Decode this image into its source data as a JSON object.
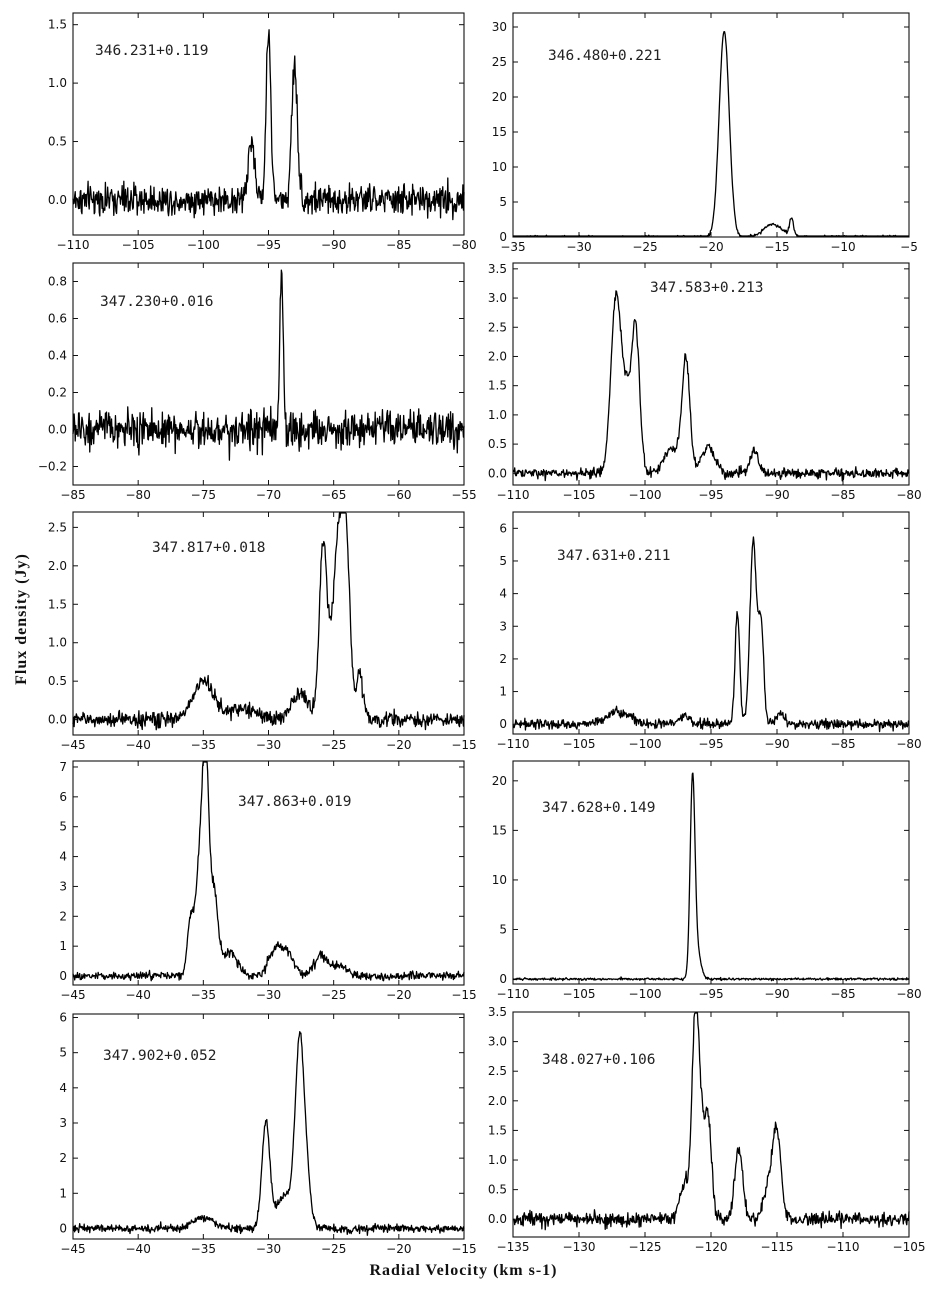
{
  "figure": {
    "ylabel": "Flux    density    (Jy)",
    "xlabel": "Radial    Velocity    (km s-1)",
    "line_color": "#000000"
  },
  "chart_data": [
    {
      "type": "line",
      "title": "346.231+0.119",
      "xlabel": "",
      "ylabel": "",
      "xlim": [
        -110,
        -80
      ],
      "ylim": [
        -0.3,
        1.6
      ],
      "xticks": [
        -110,
        -105,
        -100,
        -95,
        -90,
        -85,
        -80
      ],
      "yticks": [
        0.0,
        0.5,
        1.0,
        1.5
      ],
      "noise": 0.09,
      "series": [
        {
          "components": [
            [
              -96.3,
              0.5,
              0.25
            ],
            [
              -95.0,
              1.45,
              0.18
            ],
            [
              -93.0,
              1.15,
              0.22
            ]
          ]
        }
      ]
    },
    {
      "type": "line",
      "title": "346.480+0.221",
      "xlabel": "",
      "ylabel": "",
      "xlim": [
        -35,
        -5
      ],
      "ylim": [
        0,
        32
      ],
      "xticks": [
        -35,
        -30,
        -25,
        -20,
        -15,
        -10,
        -5
      ],
      "yticks": [
        0,
        5,
        10,
        15,
        20,
        25,
        30
      ],
      "noise": 0.15,
      "series": [
        {
          "components": [
            [
              -19.0,
              29.5,
              0.38
            ],
            [
              -15.3,
              1.8,
              0.7
            ],
            [
              -13.9,
              2.6,
              0.15
            ]
          ]
        }
      ]
    },
    {
      "type": "line",
      "title": "347.230+0.016",
      "xlabel": "",
      "ylabel": "",
      "xlim": [
        -85,
        -55
      ],
      "ylim": [
        -0.3,
        0.9
      ],
      "xticks": [
        -85,
        -80,
        -75,
        -70,
        -65,
        -60,
        -55
      ],
      "yticks": [
        -0.2,
        0.0,
        0.2,
        0.4,
        0.6,
        0.8
      ],
      "noise": 0.07,
      "series": [
        {
          "components": [
            [
              -69.0,
              0.83,
              0.13
            ]
          ]
        }
      ]
    },
    {
      "type": "line",
      "title": "347.583+0.213",
      "xlabel": "",
      "ylabel": "",
      "xlim": [
        -110,
        -80
      ],
      "ylim": [
        -0.2,
        3.6
      ],
      "xticks": [
        -110,
        -105,
        -100,
        -95,
        -90,
        -85,
        -80
      ],
      "yticks": [
        0.0,
        0.5,
        1.0,
        1.5,
        2.0,
        2.5,
        3.0,
        3.5
      ],
      "noise": 0.06,
      "series": [
        {
          "components": [
            [
              -102.2,
              3.0,
              0.38
            ],
            [
              -101.4,
              1.2,
              0.35
            ],
            [
              -100.7,
              2.4,
              0.3
            ],
            [
              -96.9,
              1.9,
              0.3
            ],
            [
              -98.0,
              0.4,
              0.6
            ],
            [
              -95.2,
              0.45,
              0.5
            ],
            [
              -91.7,
              0.4,
              0.3
            ]
          ]
        }
      ]
    },
    {
      "type": "line",
      "title": "347.817+0.018",
      "xlabel": "",
      "ylabel": "",
      "xlim": [
        -45,
        -15
      ],
      "ylim": [
        -0.2,
        2.7
      ],
      "xticks": [
        -45,
        -40,
        -35,
        -30,
        -25,
        -20,
        -15
      ],
      "yticks": [
        0.0,
        0.5,
        1.0,
        1.5,
        2.0,
        2.5
      ],
      "noise": 0.07,
      "series": [
        {
          "components": [
            [
              -35.0,
              0.5,
              0.8
            ],
            [
              -32.0,
              0.15,
              1.0
            ],
            [
              -27.6,
              0.35,
              0.6
            ],
            [
              -25.8,
              2.3,
              0.3
            ],
            [
              -24.6,
              2.4,
              0.45
            ],
            [
              -24.0,
              1.5,
              0.3
            ],
            [
              -23.0,
              0.6,
              0.25
            ]
          ]
        }
      ]
    },
    {
      "type": "line",
      "title": "347.631+0.211",
      "xlabel": "",
      "ylabel": "",
      "xlim": [
        -110,
        -80
      ],
      "ylim": [
        -0.3,
        6.5
      ],
      "xticks": [
        -110,
        -105,
        -100,
        -95,
        -90,
        -85,
        -80
      ],
      "yticks": [
        0,
        1,
        2,
        3,
        4,
        5,
        6
      ],
      "noise": 0.1,
      "series": [
        {
          "components": [
            [
              -102.0,
              0.4,
              0.9
            ],
            [
              -97.0,
              0.25,
              0.4
            ],
            [
              -93.0,
              3.4,
              0.18
            ],
            [
              -91.8,
              5.6,
              0.25
            ],
            [
              -91.2,
              3.0,
              0.2
            ],
            [
              -89.8,
              0.3,
              0.3
            ]
          ]
        }
      ]
    },
    {
      "type": "line",
      "title": "347.863+0.019",
      "xlabel": "",
      "ylabel": "",
      "xlim": [
        -45,
        -15
      ],
      "ylim": [
        -0.3,
        7.2
      ],
      "xticks": [
        -45,
        -40,
        -35,
        -30,
        -25,
        -20,
        -15
      ],
      "yticks": [
        0,
        1,
        2,
        3,
        4,
        5,
        6,
        7
      ],
      "noise": 0.1,
      "series": [
        {
          "components": [
            [
              -36.0,
              1.7,
              0.25
            ],
            [
              -35.2,
              4.3,
              0.35
            ],
            [
              -34.8,
              5.6,
              0.22
            ],
            [
              -34.2,
              2.8,
              0.3
            ],
            [
              -33.0,
              0.8,
              0.6
            ],
            [
              -29.5,
              0.9,
              0.5
            ],
            [
              -28.5,
              0.7,
              0.5
            ],
            [
              -26.0,
              0.7,
              0.5
            ],
            [
              -24.5,
              0.35,
              0.5
            ]
          ]
        }
      ]
    },
    {
      "type": "line",
      "title": "347.628+0.149",
      "xlabel": "",
      "ylabel": "",
      "xlim": [
        -110,
        -80
      ],
      "ylim": [
        -0.5,
        22
      ],
      "xticks": [
        -110,
        -105,
        -100,
        -95,
        -90,
        -85,
        -80
      ],
      "yticks": [
        0,
        5,
        10,
        15,
        20
      ],
      "noise": 0.08,
      "series": [
        {
          "components": [
            [
              -96.4,
              19.0,
              0.18
            ],
            [
              -96.1,
              3.0,
              0.3
            ]
          ]
        }
      ]
    },
    {
      "type": "line",
      "title": "347.902+0.052",
      "xlabel": "",
      "ylabel": "",
      "xlim": [
        -45,
        -15
      ],
      "ylim": [
        -0.3,
        6.1
      ],
      "xticks": [
        -45,
        -40,
        -35,
        -30,
        -25,
        -20,
        -15
      ],
      "yticks": [
        0,
        1,
        2,
        3,
        4,
        5,
        6
      ],
      "noise": 0.08,
      "series": [
        {
          "components": [
            [
              -35.0,
              0.3,
              0.8
            ],
            [
              -30.2,
              3.0,
              0.3
            ],
            [
              -28.8,
              0.9,
              0.6
            ],
            [
              -27.6,
              5.3,
              0.35
            ],
            [
              -27.0,
              0.9,
              0.3
            ]
          ]
        }
      ]
    },
    {
      "type": "line",
      "title": "348.027+0.106",
      "xlabel": "",
      "ylabel": "",
      "xlim": [
        -135,
        -105
      ],
      "ylim": [
        -0.3,
        3.5
      ],
      "xticks": [
        -135,
        -130,
        -125,
        -120,
        -115,
        -110,
        -105
      ],
      "yticks": [
        0.0,
        0.5,
        1.0,
        1.5,
        2.0,
        2.5,
        3.0,
        3.5
      ],
      "noise": 0.08,
      "series": [
        {
          "components": [
            [
              -122.0,
              0.6,
              0.35
            ],
            [
              -121.2,
              3.0,
              0.25
            ],
            [
              -120.8,
              1.5,
              0.3
            ],
            [
              -120.2,
              1.6,
              0.25
            ],
            [
              -117.9,
              1.2,
              0.3
            ],
            [
              -115.6,
              0.6,
              0.4
            ],
            [
              -115.0,
              1.4,
              0.3
            ]
          ]
        }
      ]
    }
  ]
}
